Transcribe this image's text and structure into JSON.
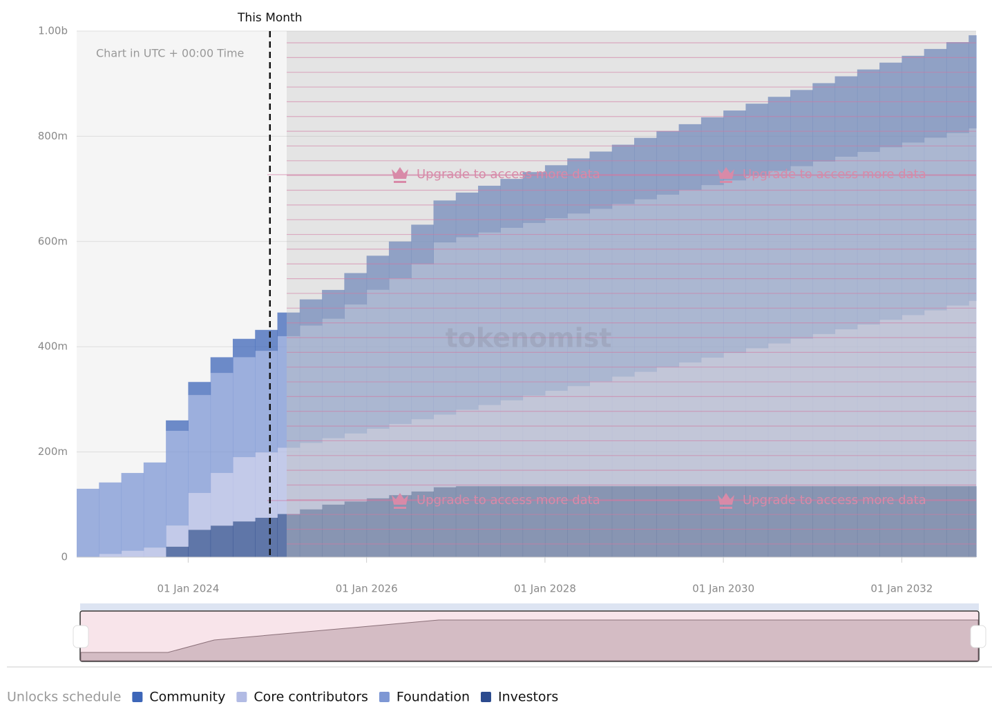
{
  "chart_data": {
    "type": "stacked-step-area",
    "annotation": {
      "text": "This Month",
      "x": "2024-12"
    },
    "note": "Chart in UTC + 00:00 Time",
    "upgrade_text": "Upgrade to access more data",
    "watermark": "tokenomist",
    "legend_title": "Unlocks schedule",
    "x": [
      "2022-10",
      "2023-01",
      "2023-04",
      "2023-07",
      "2023-10",
      "2024-01",
      "2024-04",
      "2024-07",
      "2024-10",
      "2025-01",
      "2025-04",
      "2025-07",
      "2025-10",
      "2026-01",
      "2026-04",
      "2026-07",
      "2026-10",
      "2027-01",
      "2027-04",
      "2027-07",
      "2027-10",
      "2028-01",
      "2028-04",
      "2028-07",
      "2028-10",
      "2029-01",
      "2029-04",
      "2029-07",
      "2029-10",
      "2030-01",
      "2030-04",
      "2030-07",
      "2030-10",
      "2031-01",
      "2031-04",
      "2031-07",
      "2031-10",
      "2032-01",
      "2032-04",
      "2032-07",
      "2032-10"
    ],
    "xlim": [
      "2022-10",
      "2032-11"
    ],
    "xticks": [
      {
        "value": "2024-01",
        "label": "01 Jan 2024"
      },
      {
        "value": "2026-01",
        "label": "01 Jan 2026"
      },
      {
        "value": "2028-01",
        "label": "01 Jan 2028"
      },
      {
        "value": "2030-01",
        "label": "01 Jan 2030"
      },
      {
        "value": "2032-01",
        "label": "01 Jan 2032"
      }
    ],
    "ylim": [
      0,
      1000
    ],
    "yticks": [
      0,
      {
        "value": 200,
        "label": "200m"
      },
      {
        "value": 400,
        "label": "400m"
      },
      {
        "value": 600,
        "label": "600m"
      },
      {
        "value": 800,
        "label": "800m"
      },
      {
        "value": 1000,
        "label": "1.00b"
      }
    ],
    "grid": true,
    "series": [
      {
        "name": "Community",
        "color": "#3d66b8",
        "values": [
          0,
          0,
          0,
          0,
          20,
          25,
          30,
          35,
          40,
          45,
          50,
          55,
          60,
          65,
          70,
          75,
          80,
          85,
          89,
          93,
          97,
          101,
          105,
          109,
          113,
          117,
          121,
          125,
          129,
          133,
          137,
          141,
          145,
          149,
          153,
          157,
          161,
          165,
          169,
          173,
          177
        ]
      },
      {
        "name": "Core contributors",
        "color": "#b2bbe4",
        "values": [
          0,
          6,
          12,
          18,
          40,
          70,
          100,
          122,
          124,
          126,
          126,
          126,
          129,
          132,
          135,
          137,
          138,
          145,
          154,
          163,
          172,
          181,
          190,
          199,
          208,
          217,
          226,
          235,
          244,
          253,
          262,
          271,
          280,
          289,
          298,
          307,
          316,
          325,
          334,
          343,
          352
        ]
      },
      {
        "name": "Foundation",
        "color": "#7e97d4",
        "values": [
          130,
          136,
          148,
          162,
          180,
          186,
          190,
          190,
          193,
          212,
          223,
          227,
          245,
          264,
          277,
          295,
          327,
          328,
          328,
          328,
          328,
          328,
          328,
          328,
          328,
          328,
          328,
          328,
          328,
          328,
          328,
          328,
          328,
          328,
          328,
          328,
          328,
          328,
          328,
          328,
          328
        ]
      },
      {
        "name": "Investors",
        "color": "#2c4b8e",
        "values": [
          0,
          0,
          0,
          0,
          20,
          52,
          60,
          68,
          75,
          82,
          91,
          100,
          106,
          112,
          118,
          125,
          133,
          135,
          135,
          135,
          135,
          135,
          135,
          135,
          135,
          135,
          135,
          135,
          135,
          135,
          135,
          135,
          135,
          135,
          135,
          135,
          135,
          135,
          135,
          135,
          135
        ]
      }
    ],
    "stack_order": [
      "Investors",
      "Core contributors",
      "Foundation",
      "Community"
    ]
  }
}
